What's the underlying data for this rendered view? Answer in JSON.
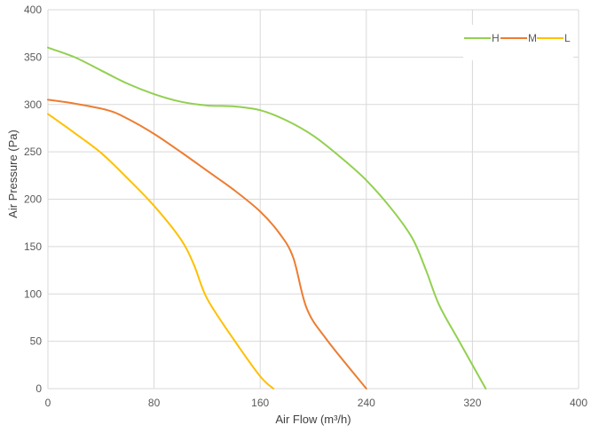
{
  "chart_data": {
    "type": "line",
    "xlabel": "Air Flow  (m³/h)",
    "ylabel": "Air Pressure  (Pa)",
    "xlim": [
      0,
      400
    ],
    "ylim": [
      0,
      400
    ],
    "x_ticks": [
      0,
      80,
      160,
      240,
      320,
      400
    ],
    "y_ticks": [
      0,
      50,
      100,
      150,
      200,
      250,
      300,
      350,
      400
    ],
    "grid": true,
    "legend_position": "top-right",
    "series": [
      {
        "name": "H",
        "color": "#92d050",
        "points": [
          [
            0,
            360
          ],
          [
            20,
            350
          ],
          [
            40,
            336
          ],
          [
            60,
            322
          ],
          [
            80,
            311
          ],
          [
            100,
            303
          ],
          [
            120,
            299
          ],
          [
            140,
            298
          ],
          [
            160,
            294
          ],
          [
            180,
            283
          ],
          [
            200,
            267
          ],
          [
            220,
            245
          ],
          [
            240,
            220
          ],
          [
            260,
            188
          ],
          [
            275,
            158
          ],
          [
            285,
            125
          ],
          [
            295,
            88
          ],
          [
            310,
            50
          ],
          [
            330,
            0
          ]
        ]
      },
      {
        "name": "M",
        "color": "#ed7d31",
        "points": [
          [
            0,
            305
          ],
          [
            20,
            301
          ],
          [
            45,
            294
          ],
          [
            60,
            285
          ],
          [
            80,
            269
          ],
          [
            100,
            250
          ],
          [
            120,
            230
          ],
          [
            140,
            210
          ],
          [
            160,
            187
          ],
          [
            175,
            163
          ],
          [
            185,
            138
          ],
          [
            195,
            85
          ],
          [
            210,
            52
          ],
          [
            240,
            0
          ]
        ]
      },
      {
        "name": "L",
        "color": "#ffc000",
        "points": [
          [
            0,
            290
          ],
          [
            20,
            270
          ],
          [
            40,
            249
          ],
          [
            60,
            222
          ],
          [
            80,
            193
          ],
          [
            100,
            158
          ],
          [
            110,
            131
          ],
          [
            120,
            95
          ],
          [
            140,
            52
          ],
          [
            160,
            13
          ],
          [
            170,
            0
          ]
        ]
      }
    ]
  }
}
